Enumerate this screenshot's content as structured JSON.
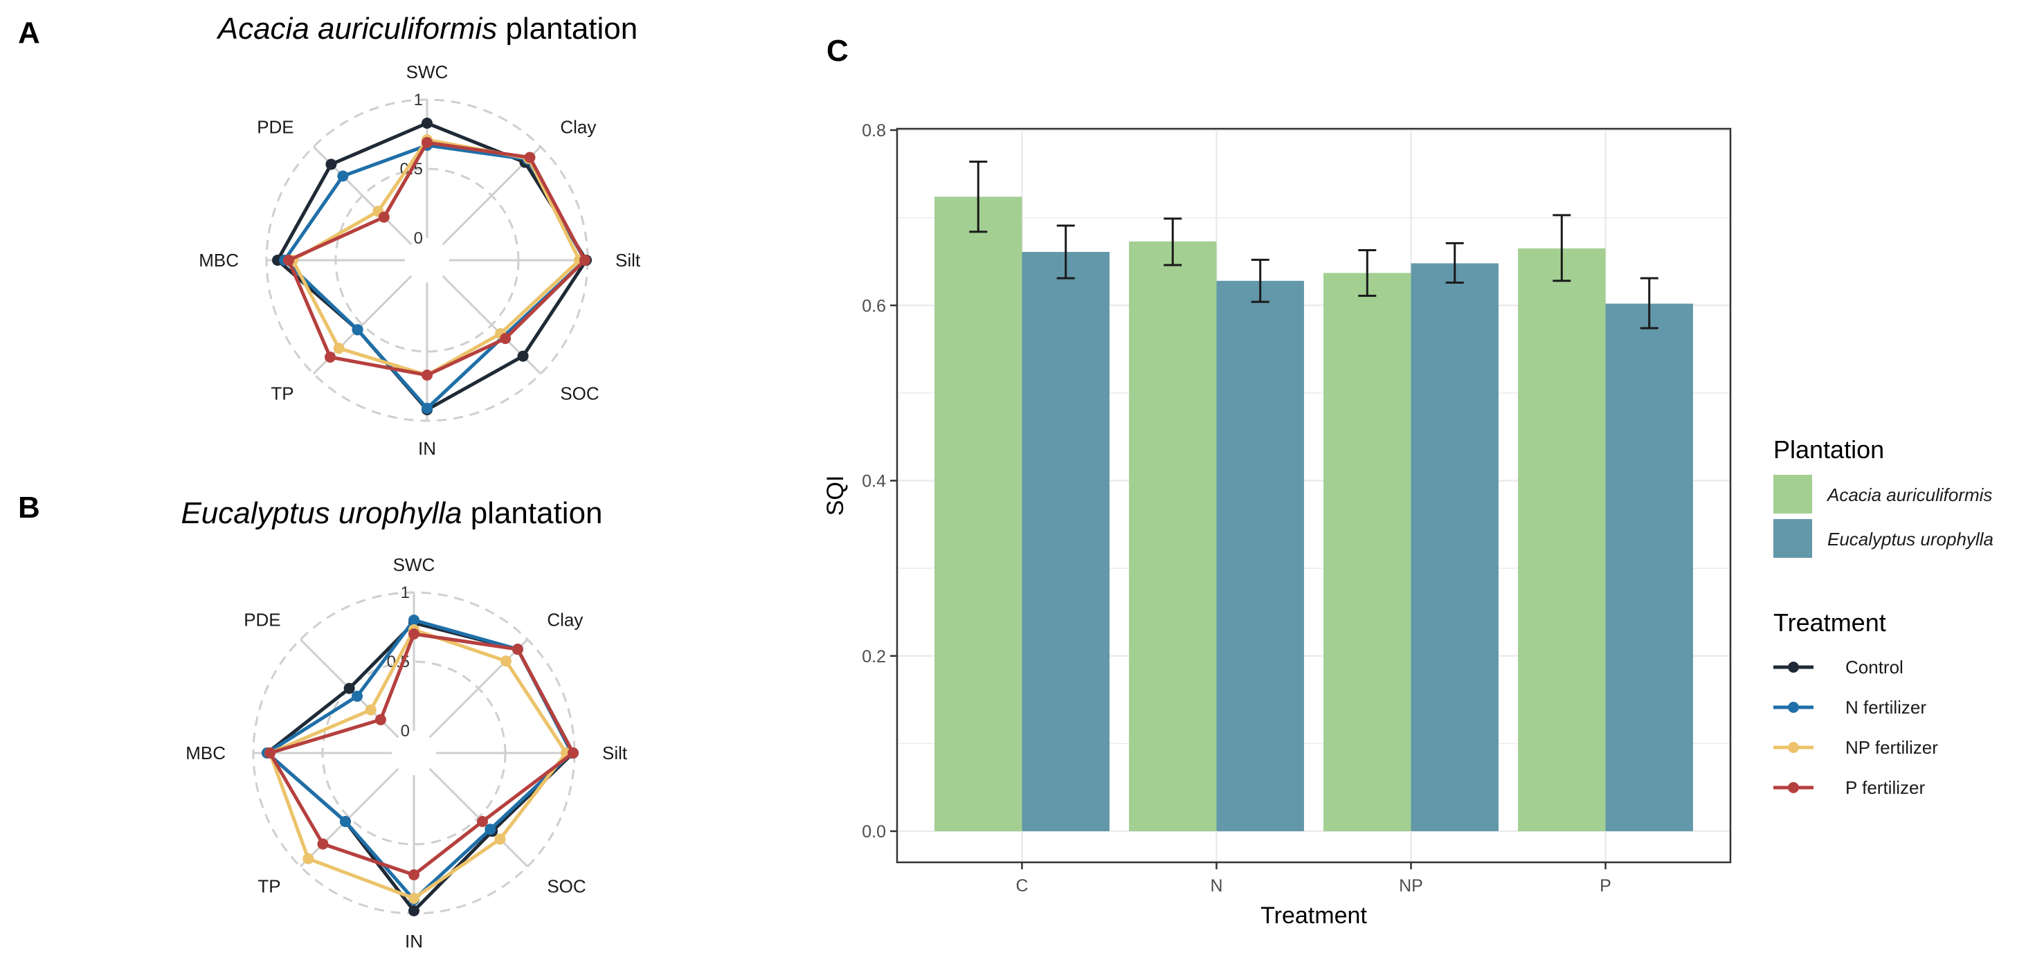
{
  "colors": {
    "control": "#1f2a36",
    "n_fertilizer": "#1f6fa8",
    "np_fertilizer": "#ecc36a",
    "p_fertilizer": "#b5403e",
    "acacia": "#a3cf93",
    "eucalyptus": "#6298a9",
    "grid": "#ebebeb",
    "radar_grid": "#cfcfcf"
  },
  "chart_data": [
    {
      "panel": "A",
      "type": "radar",
      "title_italic": "Acacia auriculiformis",
      "title_plain": " plantation",
      "axes": [
        "SWC",
        "Clay",
        "Silt",
        "SOC",
        "IN",
        "TP",
        "MBC",
        "PDE"
      ],
      "ring_labels": [
        "1",
        "0.5",
        "0"
      ],
      "range": [
        0,
        1
      ],
      "series": [
        {
          "name": "Control",
          "color_key": "control",
          "values": [
            0.83,
            0.84,
            0.99,
            0.82,
            0.92,
            0.55,
            0.92,
            0.82
          ]
        },
        {
          "name": "N fertilizer",
          "color_key": "n_fertilizer",
          "values": [
            0.67,
            0.87,
            0.98,
            0.62,
            0.91,
            0.55,
            0.87,
            0.7
          ]
        },
        {
          "name": "NP fertilizer",
          "color_key": "np_fertilizer",
          "values": [
            0.71,
            0.88,
            0.94,
            0.59,
            0.67,
            0.74,
            0.81,
            0.34
          ]
        },
        {
          "name": "P fertilizer",
          "color_key": "p_fertilizer",
          "values": [
            0.69,
            0.89,
            0.98,
            0.64,
            0.67,
            0.83,
            0.84,
            0.28
          ]
        }
      ]
    },
    {
      "panel": "B",
      "type": "radar",
      "title_italic": "Eucalyptus urophylla",
      "title_plain": " plantation",
      "axes": [
        "SWC",
        "Clay",
        "Silt",
        "SOC",
        "IN",
        "TP",
        "MBC",
        "PDE"
      ],
      "ring_labels": [
        "1",
        "0.5",
        "0"
      ],
      "range": [
        0,
        1
      ],
      "series": [
        {
          "name": "Control",
          "color_key": "control",
          "values": [
            0.78,
            0.9,
            0.99,
            0.64,
            0.98,
            0.54,
            0.9,
            0.5
          ]
        },
        {
          "name": "N fertilizer",
          "color_key": "n_fertilizer",
          "values": [
            0.8,
            0.9,
            0.98,
            0.62,
            0.9,
            0.54,
            0.9,
            0.42
          ]
        },
        {
          "name": "NP fertilizer",
          "color_key": "np_fertilizer",
          "values": [
            0.73,
            0.78,
            0.94,
            0.72,
            0.89,
            0.92,
            0.88,
            0.28
          ]
        },
        {
          "name": "P fertilizer",
          "color_key": "p_fertilizer",
          "values": [
            0.7,
            0.9,
            0.99,
            0.54,
            0.72,
            0.77,
            0.88,
            0.18
          ]
        }
      ]
    },
    {
      "panel": "C",
      "type": "bar",
      "categories": [
        "C",
        "N",
        "NP",
        "P"
      ],
      "xlabel": "Treatment",
      "ylabel": "SQI",
      "ylim": [
        0,
        0.8
      ],
      "yticks": [
        "0.0",
        "0.2",
        "0.4",
        "0.6",
        "0.8"
      ],
      "series": [
        {
          "name": "Acacia auriculiformis",
          "color_key": "acacia",
          "values": [
            0.724,
            0.673,
            0.637,
            0.665
          ],
          "err_low": [
            0.684,
            0.646,
            0.611,
            0.628
          ],
          "err_high": [
            0.764,
            0.699,
            0.663,
            0.703
          ]
        },
        {
          "name": "Eucalyptus urophylla",
          "color_key": "eucalyptus",
          "values": [
            0.661,
            0.628,
            0.648,
            0.602
          ],
          "err_low": [
            0.631,
            0.604,
            0.626,
            0.574
          ],
          "err_high": [
            0.691,
            0.652,
            0.671,
            0.631
          ]
        }
      ]
    }
  ],
  "legend": {
    "plantation_title": "Plantation",
    "plantation_items": [
      "Acacia auriculiformis",
      "Eucalyptus urophylla"
    ],
    "treatment_title": "Treatment",
    "treatment_items": [
      "Control",
      "N fertilizer",
      "NP fertilizer",
      "P fertilizer"
    ]
  }
}
